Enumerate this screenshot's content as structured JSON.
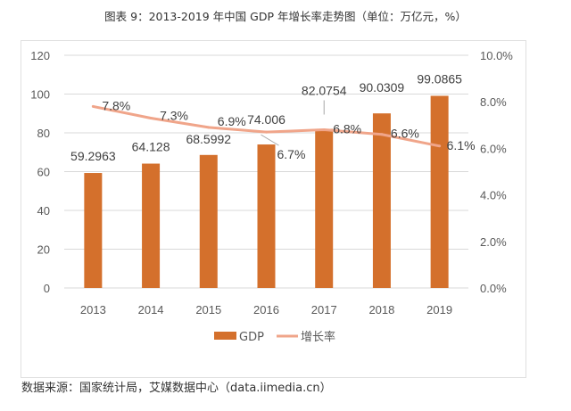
{
  "title": "图表 9：2013-2019 年中国 GDP 年增长率走势图（单位：万亿元，%）",
  "source": "数据来源：国家统计局，艾媒数据中心（data.iimedia.cn）",
  "chart_data": {
    "type": "bar+line",
    "title": "图表 9：2013-2019 年中国 GDP 年增长率走势图（单位：万亿元，%）",
    "categories": [
      "2013",
      "2014",
      "2015",
      "2016",
      "2017",
      "2018",
      "2019"
    ],
    "series": [
      {
        "name": "GDP",
        "type": "bar",
        "axis": "left",
        "color": "#d4702c",
        "values": [
          59.2963,
          64.128,
          68.5992,
          74.006,
          82.0754,
          90.0309,
          99.0865
        ],
        "labels": [
          "59.2963",
          "64.128",
          "68.5992",
          "74.006",
          "82.0754",
          "90.0309",
          "99.0865"
        ]
      },
      {
        "name": "增长率",
        "type": "line",
        "axis": "right",
        "color": "#f0a58a",
        "values": [
          7.8,
          7.3,
          6.9,
          6.7,
          6.8,
          6.6,
          6.1
        ],
        "labels": [
          "7.8%",
          "7.3%",
          "6.9%",
          "6.7%",
          "6.8%",
          "6.6%",
          "6.1%"
        ]
      }
    ],
    "y_left": {
      "range": [
        0,
        120
      ],
      "ticks": [
        "0",
        "20",
        "40",
        "60",
        "80",
        "100",
        "120"
      ]
    },
    "y_right": {
      "range": [
        0,
        10
      ],
      "ticks": [
        "0.0%",
        "2.0%",
        "4.0%",
        "6.0%",
        "8.0%",
        "10.0%"
      ]
    },
    "grid": true,
    "legend": "bottom"
  }
}
